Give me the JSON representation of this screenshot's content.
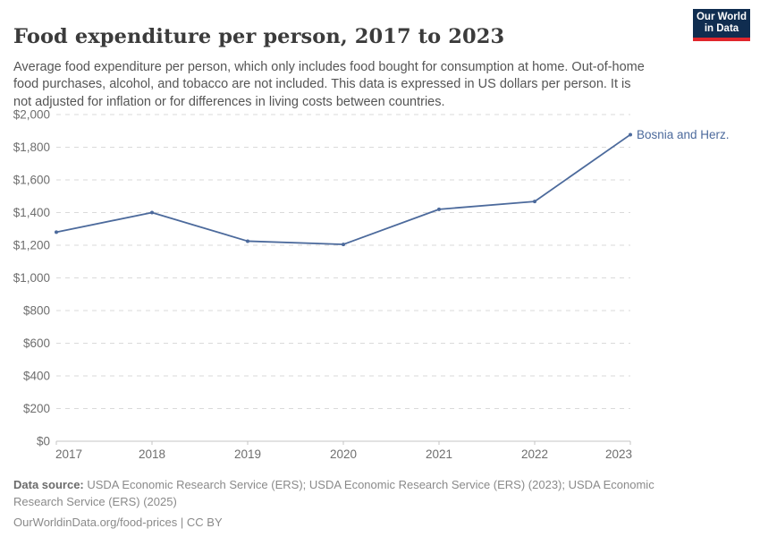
{
  "header": {
    "title": "Food expenditure per person, 2017 to 2023",
    "subtitle": "Average food expenditure per person, which only includes food bought for consumption at home. Out-of-home food purchases, alcohol, and tobacco are not included. This data is expressed in US dollars per person. It is not adjusted for inflation or for differences in living costs between countries.",
    "logo": {
      "line1": "Our World",
      "line2": "in Data",
      "bg_color": "#102d50",
      "accent_color": "#e0262c"
    }
  },
  "chart_data": {
    "type": "line",
    "title": "Food expenditure per person, 2017 to 2023",
    "x": [
      2017,
      2018,
      2019,
      2020,
      2021,
      2022,
      2023
    ],
    "x_tick_labels": [
      "2017",
      "2018",
      "2019",
      "2020",
      "2021",
      "2022",
      "2023"
    ],
    "series": [
      {
        "name": "Bosnia and Herz.",
        "values": [
          1280,
          1400,
          1225,
          1205,
          1420,
          1468,
          1877
        ],
        "color": "#4c6a9c"
      }
    ],
    "ylim": [
      0,
      2000
    ],
    "y_tick_interval": 200,
    "y_ticks": [
      {
        "value": 0,
        "label": "$0"
      },
      {
        "value": 200,
        "label": "$200"
      },
      {
        "value": 400,
        "label": "$400"
      },
      {
        "value": 600,
        "label": "$600"
      },
      {
        "value": 800,
        "label": "$800"
      },
      {
        "value": 1000,
        "label": "$1,000"
      },
      {
        "value": 1200,
        "label": "$1,200"
      },
      {
        "value": 1400,
        "label": "$1,400"
      },
      {
        "value": 1600,
        "label": "$1,600"
      },
      {
        "value": 1800,
        "label": "$1,800"
      },
      {
        "value": 2000,
        "label": "$2,000"
      }
    ],
    "grid": "horizontal-dashed",
    "legend_position": "end-of-line-label",
    "unit": "US dollars per person"
  },
  "footer": {
    "source_label": "Data source:",
    "source_text": " USDA Economic Research Service (ERS); USDA Economic Research Service (ERS) (2023); USDA Economic Research Service (ERS) (2025)",
    "license_line": "OurWorldinData.org/food-prices | CC BY"
  },
  "colors": {
    "line": "#4c6a9c",
    "grid": "#dadada",
    "axis": "#c4c4c4",
    "tick_text": "#6e6e6e",
    "title_text": "#3b3b3b",
    "subtitle_text": "#555555",
    "footer_text": "#8a8a8a"
  }
}
